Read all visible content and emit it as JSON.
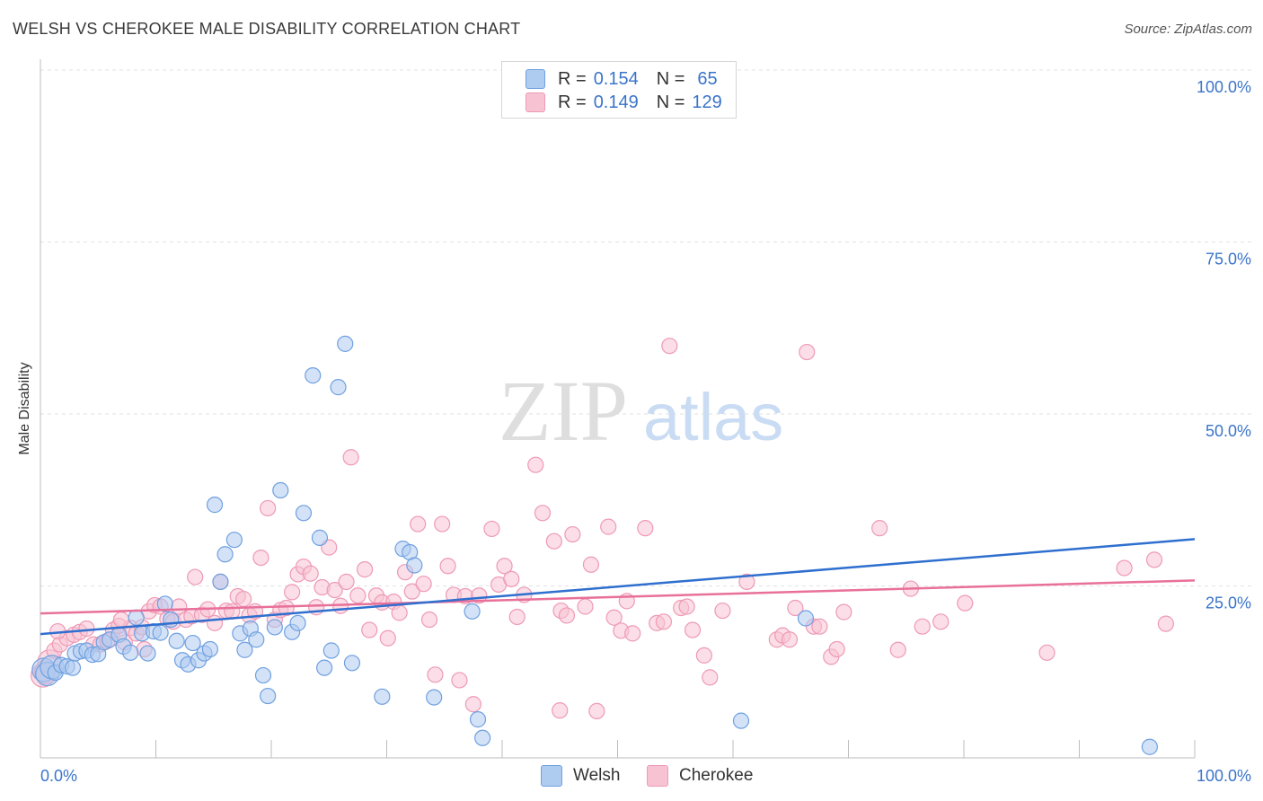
{
  "header": {
    "title": "WELSH VS CHEROKEE MALE DISABILITY CORRELATION CHART",
    "source": "Source: ZipAtlas.com"
  },
  "watermark": {
    "zip": "ZIP",
    "atlas": "atlas"
  },
  "legend": {
    "welsh": {
      "r_label": "R =",
      "r_value": "0.154",
      "n_label": "N =",
      "n_value": "65"
    },
    "cherokee": {
      "r_label": "R =",
      "r_value": "0.149",
      "n_label": "N =",
      "n_value": "129"
    }
  },
  "colors": {
    "welsh_fill": "#aecbf0",
    "welsh_stroke": "#6fa0e0",
    "welsh_line": "#2f6fcf",
    "cherokee_fill": "#f7c3d3",
    "cherokee_stroke": "#ee9ab5",
    "cherokee_line": "#e8709a",
    "tick_label": "#3a74c9"
  },
  "chart_data": {
    "type": "scatter",
    "xlabel": "",
    "ylabel": "Male Disability",
    "xlim": [
      0,
      100
    ],
    "ylim": [
      0,
      100
    ],
    "x_tick_labels": [
      "0.0%",
      "100.0%"
    ],
    "y_tick_labels": [
      "100.0%",
      "75.0%",
      "50.0%",
      "25.0%"
    ],
    "y_ticks": [
      100,
      75,
      50,
      25
    ],
    "grid": true,
    "legend_position": "top-center",
    "series": [
      {
        "name": "Welsh",
        "trend": [
          [
            0,
            18.0
          ],
          [
            100,
            31.8
          ]
        ],
        "points": [
          [
            0.3,
            12.8
          ],
          [
            0.6,
            12.2
          ],
          [
            1.0,
            13.2
          ],
          [
            1.3,
            12.4
          ],
          [
            1.8,
            13.5
          ],
          [
            2.3,
            13.3
          ],
          [
            2.8,
            13.1
          ],
          [
            3.0,
            15.2
          ],
          [
            3.5,
            15.5
          ],
          [
            4.0,
            15.6
          ],
          [
            4.5,
            15.0
          ],
          [
            5.0,
            15.1
          ],
          [
            5.5,
            16.8
          ],
          [
            6.0,
            17.2
          ],
          [
            6.8,
            17.9
          ],
          [
            7.2,
            16.2
          ],
          [
            7.8,
            15.3
          ],
          [
            8.3,
            20.4
          ],
          [
            8.8,
            18.1
          ],
          [
            9.3,
            15.2
          ],
          [
            9.8,
            18.4
          ],
          [
            10.4,
            18.2
          ],
          [
            10.8,
            22.4
          ],
          [
            11.3,
            20.1
          ],
          [
            11.8,
            17.0
          ],
          [
            12.3,
            14.2
          ],
          [
            12.8,
            13.6
          ],
          [
            13.2,
            16.7
          ],
          [
            13.7,
            14.2
          ],
          [
            14.2,
            15.2
          ],
          [
            14.7,
            15.8
          ],
          [
            15.1,
            36.8
          ],
          [
            15.6,
            25.6
          ],
          [
            16.0,
            29.6
          ],
          [
            16.8,
            31.7
          ],
          [
            17.3,
            18.1
          ],
          [
            17.7,
            15.7
          ],
          [
            18.2,
            18.8
          ],
          [
            18.7,
            17.2
          ],
          [
            19.3,
            12.0
          ],
          [
            19.7,
            9.0
          ],
          [
            20.3,
            19.0
          ],
          [
            20.8,
            38.9
          ],
          [
            21.8,
            18.3
          ],
          [
            22.3,
            19.6
          ],
          [
            22.8,
            35.6
          ],
          [
            23.6,
            55.6
          ],
          [
            24.2,
            32.0
          ],
          [
            24.6,
            13.1
          ],
          [
            25.2,
            15.6
          ],
          [
            25.8,
            53.9
          ],
          [
            26.4,
            60.2
          ],
          [
            27.0,
            13.8
          ],
          [
            29.6,
            8.9
          ],
          [
            31.4,
            30.4
          ],
          [
            32.0,
            29.9
          ],
          [
            32.4,
            28.0
          ],
          [
            34.1,
            8.8
          ],
          [
            37.4,
            21.3
          ],
          [
            37.9,
            5.6
          ],
          [
            38.3,
            2.9
          ],
          [
            54.2,
            100.0
          ],
          [
            60.7,
            5.4
          ],
          [
            66.3,
            20.3
          ],
          [
            96.1,
            1.6
          ]
        ]
      },
      {
        "name": "Cherokee",
        "trend": [
          [
            0,
            21.0
          ],
          [
            100,
            25.8
          ]
        ],
        "points": [
          [
            0.2,
            12.0
          ],
          [
            0.5,
            12.5
          ],
          [
            0.8,
            14.0
          ],
          [
            1.2,
            15.6
          ],
          [
            1.7,
            16.5
          ],
          [
            2.3,
            17.4
          ],
          [
            2.9,
            17.9
          ],
          [
            3.4,
            18.3
          ],
          [
            4.0,
            18.8
          ],
          [
            4.6,
            16.5
          ],
          [
            5.2,
            16.5
          ],
          [
            5.8,
            17.0
          ],
          [
            6.3,
            18.6
          ],
          [
            6.8,
            19.2
          ],
          [
            7.3,
            16.8
          ],
          [
            7.8,
            18.9
          ],
          [
            8.3,
            18.1
          ],
          [
            8.8,
            19.0
          ],
          [
            9.4,
            21.3
          ],
          [
            9.9,
            22.2
          ],
          [
            10.4,
            22.0
          ],
          [
            11.0,
            20.2
          ],
          [
            11.5,
            19.8
          ],
          [
            12.0,
            22.0
          ],
          [
            12.6,
            20.1
          ],
          [
            13.1,
            20.6
          ],
          [
            13.4,
            26.3
          ],
          [
            14.0,
            20.8
          ],
          [
            14.5,
            21.6
          ],
          [
            15.1,
            19.6
          ],
          [
            15.6,
            25.6
          ],
          [
            16.1,
            21.4
          ],
          [
            16.6,
            21.3
          ],
          [
            17.1,
            23.5
          ],
          [
            17.6,
            23.1
          ],
          [
            18.1,
            20.7
          ],
          [
            18.6,
            21.3
          ],
          [
            19.1,
            29.1
          ],
          [
            19.7,
            36.3
          ],
          [
            20.3,
            20.1
          ],
          [
            20.8,
            21.5
          ],
          [
            21.3,
            21.8
          ],
          [
            21.8,
            24.1
          ],
          [
            22.3,
            26.7
          ],
          [
            22.8,
            27.8
          ],
          [
            23.4,
            26.8
          ],
          [
            23.9,
            21.9
          ],
          [
            24.4,
            24.8
          ],
          [
            25.0,
            30.6
          ],
          [
            25.5,
            24.4
          ],
          [
            26.0,
            22.1
          ],
          [
            26.5,
            25.6
          ],
          [
            26.9,
            43.7
          ],
          [
            27.5,
            23.6
          ],
          [
            28.1,
            27.4
          ],
          [
            28.5,
            18.6
          ],
          [
            29.1,
            23.6
          ],
          [
            29.6,
            22.6
          ],
          [
            30.1,
            17.4
          ],
          [
            30.6,
            22.7
          ],
          [
            31.1,
            21.1
          ],
          [
            31.6,
            27.0
          ],
          [
            32.2,
            24.2
          ],
          [
            32.7,
            34.0
          ],
          [
            33.2,
            25.3
          ],
          [
            33.7,
            20.1
          ],
          [
            34.2,
            12.1
          ],
          [
            34.8,
            34.0
          ],
          [
            35.3,
            27.9
          ],
          [
            35.8,
            23.7
          ],
          [
            36.3,
            11.3
          ],
          [
            36.8,
            23.5
          ],
          [
            37.5,
            7.8
          ],
          [
            38.0,
            23.6
          ],
          [
            39.1,
            33.3
          ],
          [
            39.7,
            25.2
          ],
          [
            40.2,
            27.9
          ],
          [
            40.8,
            26.0
          ],
          [
            41.3,
            20.5
          ],
          [
            41.9,
            23.7
          ],
          [
            42.9,
            42.6
          ],
          [
            43.5,
            35.6
          ],
          [
            44.5,
            31.5
          ],
          [
            45.1,
            21.4
          ],
          [
            45.6,
            20.7
          ],
          [
            46.1,
            32.5
          ],
          [
            47.2,
            22.0
          ],
          [
            47.7,
            28.1
          ],
          [
            48.2,
            6.8
          ],
          [
            49.2,
            33.6
          ],
          [
            49.7,
            20.4
          ],
          [
            50.3,
            18.5
          ],
          [
            50.8,
            22.8
          ],
          [
            51.3,
            18.1
          ],
          [
            52.4,
            33.4
          ],
          [
            53.4,
            19.6
          ],
          [
            54.0,
            19.8
          ],
          [
            54.5,
            59.9
          ],
          [
            55.5,
            21.8
          ],
          [
            56.0,
            22.0
          ],
          [
            56.5,
            18.6
          ],
          [
            57.5,
            14.9
          ],
          [
            58.0,
            11.7
          ],
          [
            59.1,
            21.4
          ],
          [
            61.2,
            25.6
          ],
          [
            63.8,
            17.2
          ],
          [
            64.3,
            17.8
          ],
          [
            64.9,
            17.2
          ],
          [
            65.4,
            21.8
          ],
          [
            66.4,
            59.0
          ],
          [
            67.0,
            19.1
          ],
          [
            67.5,
            19.1
          ],
          [
            68.5,
            14.7
          ],
          [
            69.0,
            15.8
          ],
          [
            69.6,
            21.2
          ],
          [
            72.7,
            33.4
          ],
          [
            74.3,
            15.7
          ],
          [
            75.4,
            24.6
          ],
          [
            76.4,
            19.1
          ],
          [
            78.0,
            19.8
          ],
          [
            80.1,
            22.5
          ],
          [
            87.2,
            15.3
          ],
          [
            93.9,
            27.6
          ],
          [
            96.5,
            28.8
          ],
          [
            97.5,
            19.5
          ],
          [
            1.5,
            18.4
          ],
          [
            7.0,
            20.1
          ],
          [
            9.0,
            15.8
          ],
          [
            45.0,
            6.9
          ]
        ]
      }
    ]
  }
}
